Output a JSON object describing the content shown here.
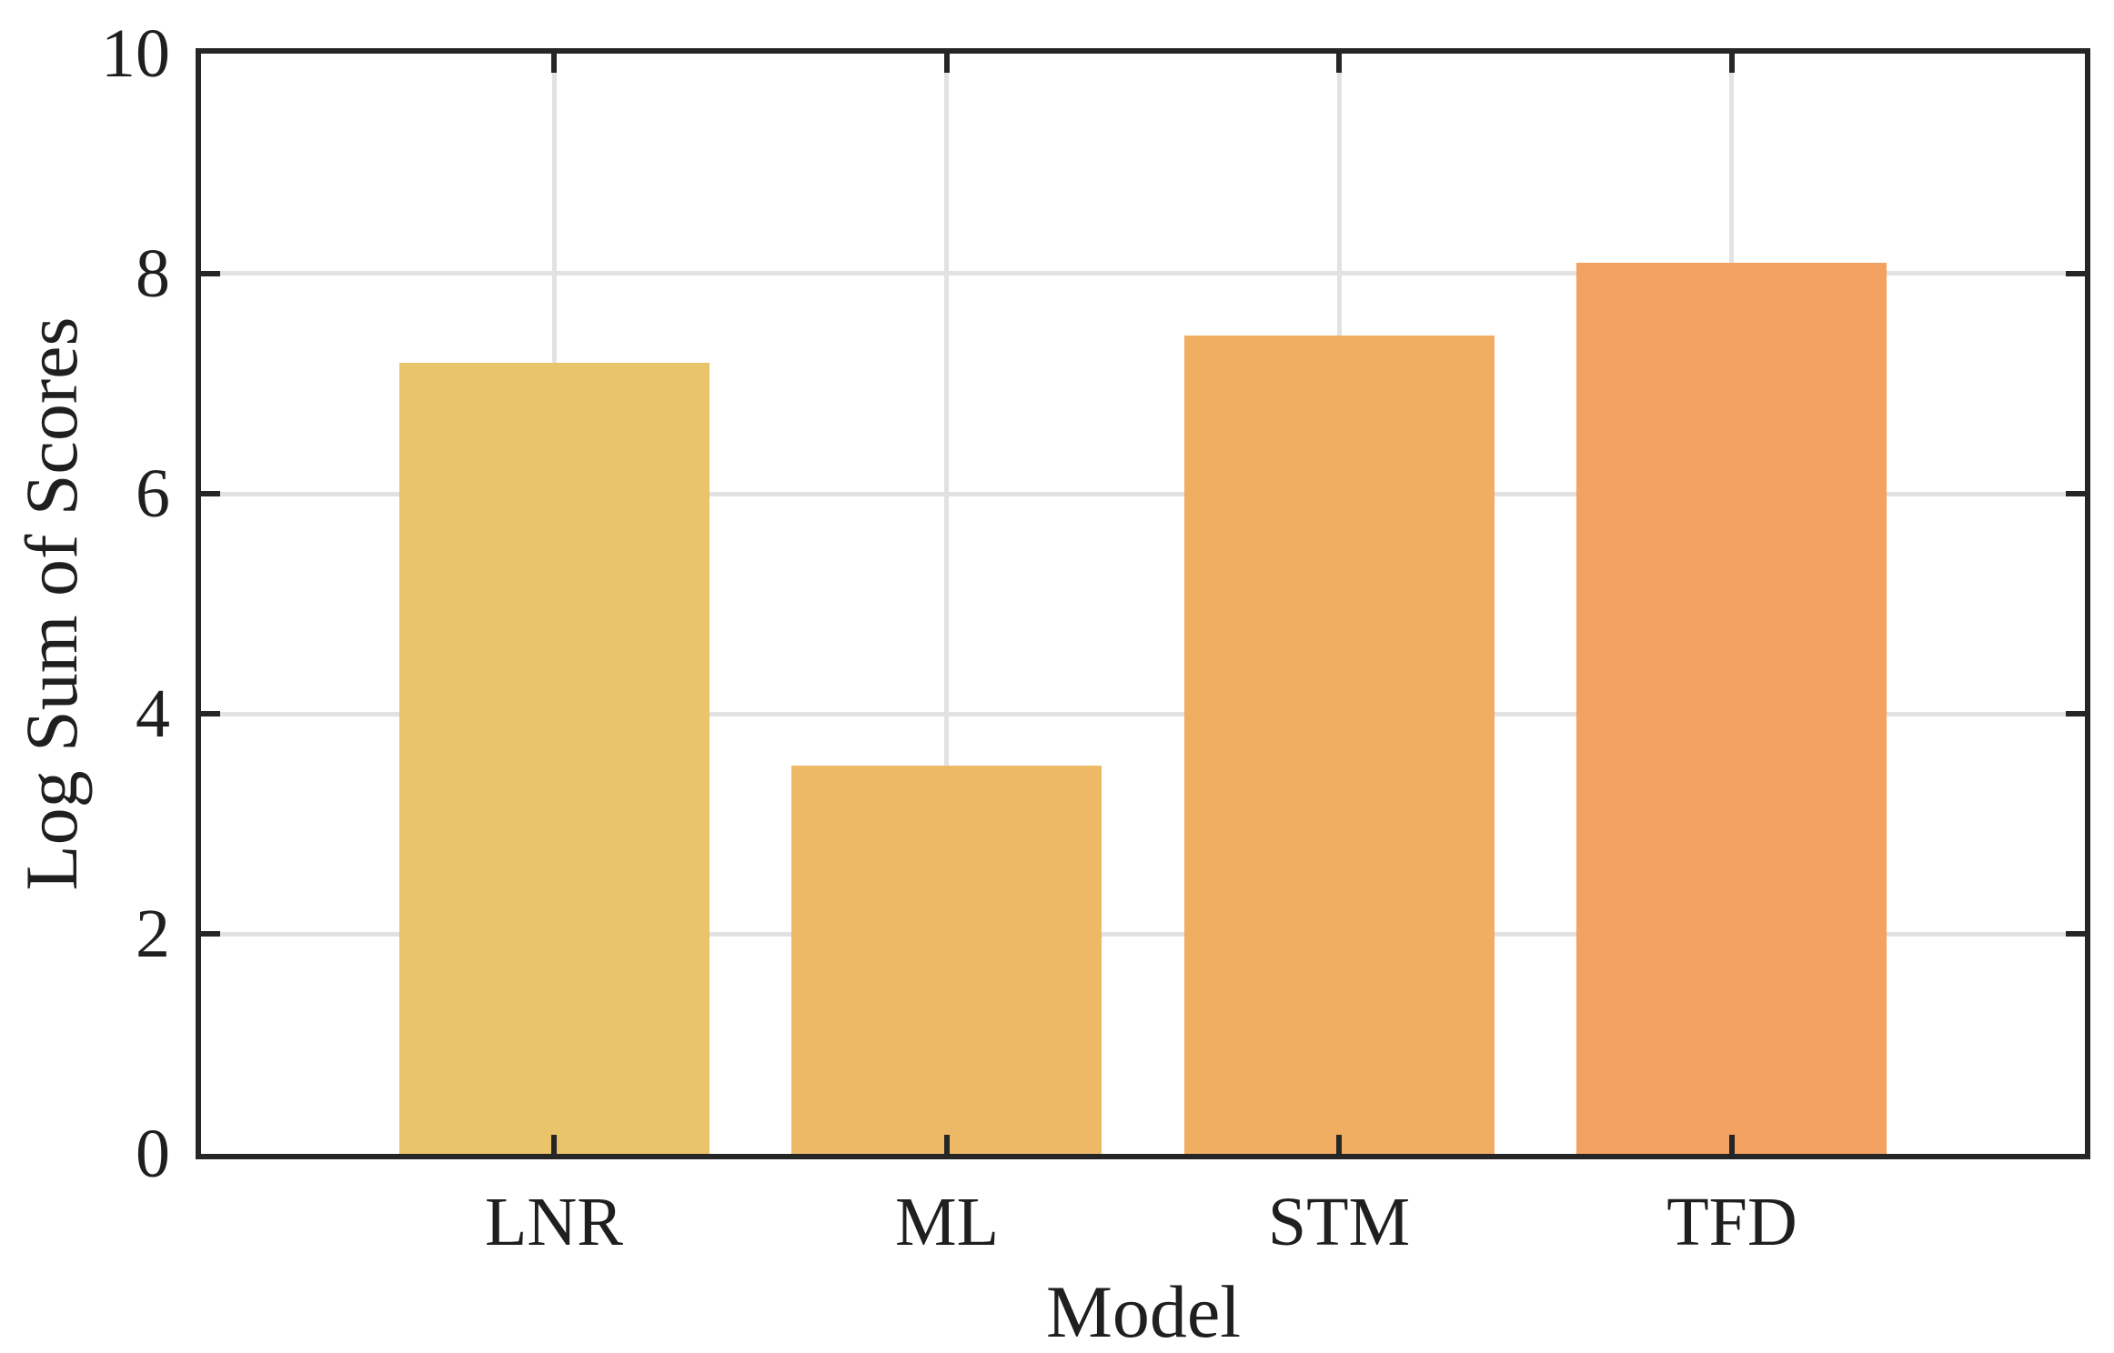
{
  "chart_data": {
    "type": "bar",
    "title": "",
    "xlabel": "Model",
    "ylabel": "Log Sum of Scores",
    "categories": [
      "LNR",
      "ML",
      "STM",
      "TFD"
    ],
    "values": [
      7.19,
      3.53,
      7.44,
      8.1
    ],
    "bar_colors": [
      "#e9c46b",
      "#edb966",
      "#f0ae63",
      "#f3a261"
    ],
    "yticks": [
      0,
      2,
      4,
      6,
      8,
      10
    ],
    "ytick_labels": [
      "0",
      "2",
      "4",
      "6",
      "8",
      "10"
    ],
    "ylim": [
      0,
      10
    ],
    "xlim": [
      -0.9,
      3.9
    ],
    "bar_width_units": 0.79,
    "grid": true,
    "grid_color": "#e2e2e2",
    "axis_color": "#262626",
    "text_color": "#1f1f1f",
    "background": "#ffffff",
    "legend_position": "none"
  }
}
